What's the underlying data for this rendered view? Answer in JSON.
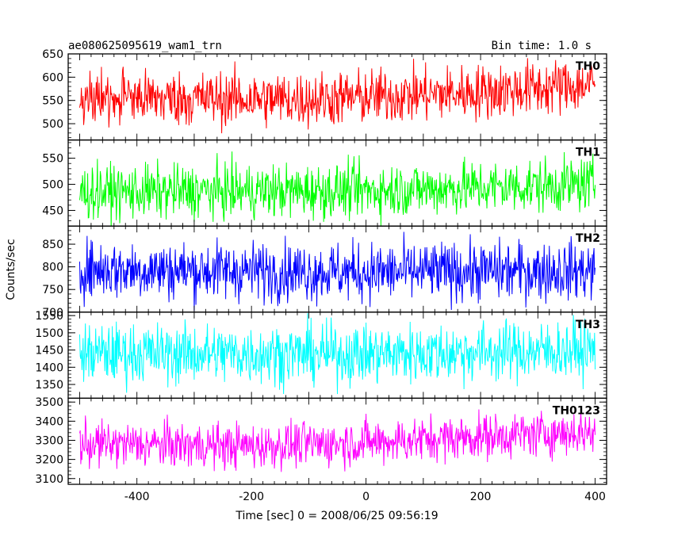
{
  "chart_data": {
    "type": "line",
    "title": "ae080625095619_wam1_trn",
    "subtitle": "Bin time: 1.0 s",
    "xlabel": "Time [sec] 0 = 2008/06/25 09:56:19",
    "ylabel": "Counts/sec",
    "xlim": [
      -520,
      420
    ],
    "xticks": [
      -400,
      -200,
      0,
      200,
      400
    ],
    "grid": false,
    "bin_time_s": 1.0,
    "x_start": -500,
    "x_end": 400,
    "panels": [
      {
        "name": "TH0",
        "color": "#ff0000",
        "ylim": [
          465,
          650
        ],
        "yticks": [
          500,
          550,
          600,
          650
        ],
        "trend": [
          [
            -500,
            556
          ],
          [
            -100,
            552
          ],
          [
            200,
            568
          ],
          [
            400,
            585
          ]
        ],
        "noise": 30
      },
      {
        "name": "TH1",
        "color": "#00ff00",
        "ylim": [
          420,
          585
        ],
        "yticks": [
          450,
          500,
          550
        ],
        "trend": [
          [
            -500,
            485
          ],
          [
            0,
            488
          ],
          [
            400,
            500
          ]
        ],
        "noise": 26
      },
      {
        "name": "TH2",
        "color": "#0000ff",
        "ylim": [
          700,
          890
        ],
        "yticks": [
          700,
          750,
          800,
          850
        ],
        "trend": [
          [
            -500,
            795
          ],
          [
            0,
            788
          ],
          [
            400,
            792
          ]
        ],
        "noise": 33
      },
      {
        "name": "TH3",
        "color": "#00ffff",
        "ylim": [
          1310,
          1560
        ],
        "yticks": [
          1350,
          1400,
          1450,
          1500,
          1550
        ],
        "trend": [
          [
            -500,
            1440
          ],
          [
            0,
            1438
          ],
          [
            400,
            1450
          ]
        ],
        "noise": 44
      },
      {
        "name": "TH0123",
        "color": "#ff00ff",
        "ylim": [
          3070,
          3520
        ],
        "yticks": [
          3100,
          3200,
          3300,
          3400,
          3500
        ],
        "trend": [
          [
            -500,
            3280
          ],
          [
            -200,
            3270
          ],
          [
            0,
            3290
          ],
          [
            200,
            3320
          ],
          [
            400,
            3345
          ]
        ],
        "noise": 60
      }
    ]
  }
}
